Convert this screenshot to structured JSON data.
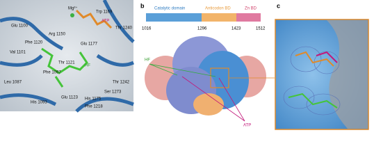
{
  "panel_a": {
    "labels": [
      "Mg²⁺",
      "Trp 1169",
      "ATP",
      "Glu 1100",
      "Arg 1150",
      "Phe 1120",
      "Val 1101",
      "Glu 1177",
      "Thr 1240",
      "Thr 1121",
      "HF",
      "Leu 1087",
      "Phe 1097",
      "Thr 1242",
      "Ser 1273",
      "His 1093",
      "Glu 1123",
      "His 1175",
      "Phe 1218"
    ]
  },
  "panel_b": {
    "letter": "b",
    "domains": [
      "Catalytic domain",
      "Anticodon BD",
      "Zn BD"
    ],
    "positions": [
      1016,
      1296,
      1423,
      1512
    ],
    "ligands": [
      "HF",
      "ATP"
    ]
  },
  "panel_c": {
    "letter": "c"
  }
}
